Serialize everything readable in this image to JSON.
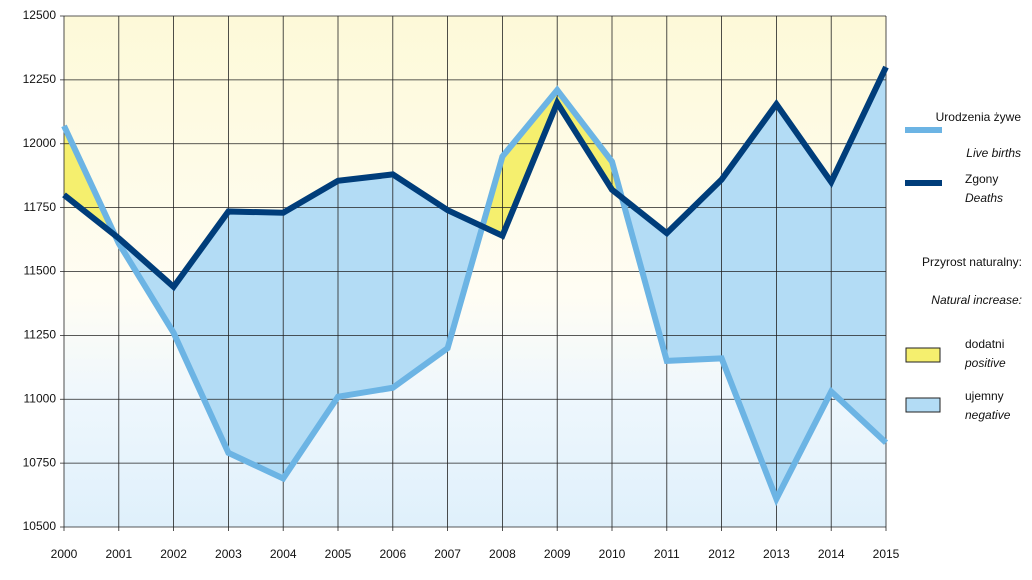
{
  "chart_data": {
    "type": "line",
    "categories": [
      "2000",
      "2001",
      "2002",
      "2003",
      "2004",
      "2005",
      "2006",
      "2007",
      "2008",
      "2009",
      "2010",
      "2011",
      "2012",
      "2013",
      "2014",
      "2015"
    ],
    "series": [
      {
        "name": "Urodzenia żywe",
        "name_en": "Live births",
        "color": "#6cb4e4",
        "values": [
          12070,
          11610,
          11260,
          10790,
          10690,
          11010,
          11045,
          11200,
          11950,
          12210,
          11930,
          11150,
          11160,
          10610,
          11030,
          10830
        ]
      },
      {
        "name": "Zgony",
        "name_en": "Deaths",
        "color": "#003d7a",
        "values": [
          11800,
          11630,
          11440,
          11735,
          11730,
          11855,
          11880,
          11740,
          11640,
          12160,
          11820,
          11650,
          11860,
          12155,
          11850,
          12300
        ]
      }
    ],
    "fill_legend_title": "Przyrost naturalny:",
    "fill_legend_title_en": "Natural increase:",
    "fills": [
      {
        "name": "dodatni",
        "name_en": "positive",
        "color": "#f5ef6e"
      },
      {
        "name": "ujemny",
        "name_en": "negative",
        "color": "#b3dcf5"
      }
    ],
    "ylim": [
      10500,
      12500
    ],
    "yticks": [
      10500,
      10750,
      11000,
      11250,
      11500,
      11750,
      12000,
      12250,
      12500
    ],
    "grid": true
  }
}
